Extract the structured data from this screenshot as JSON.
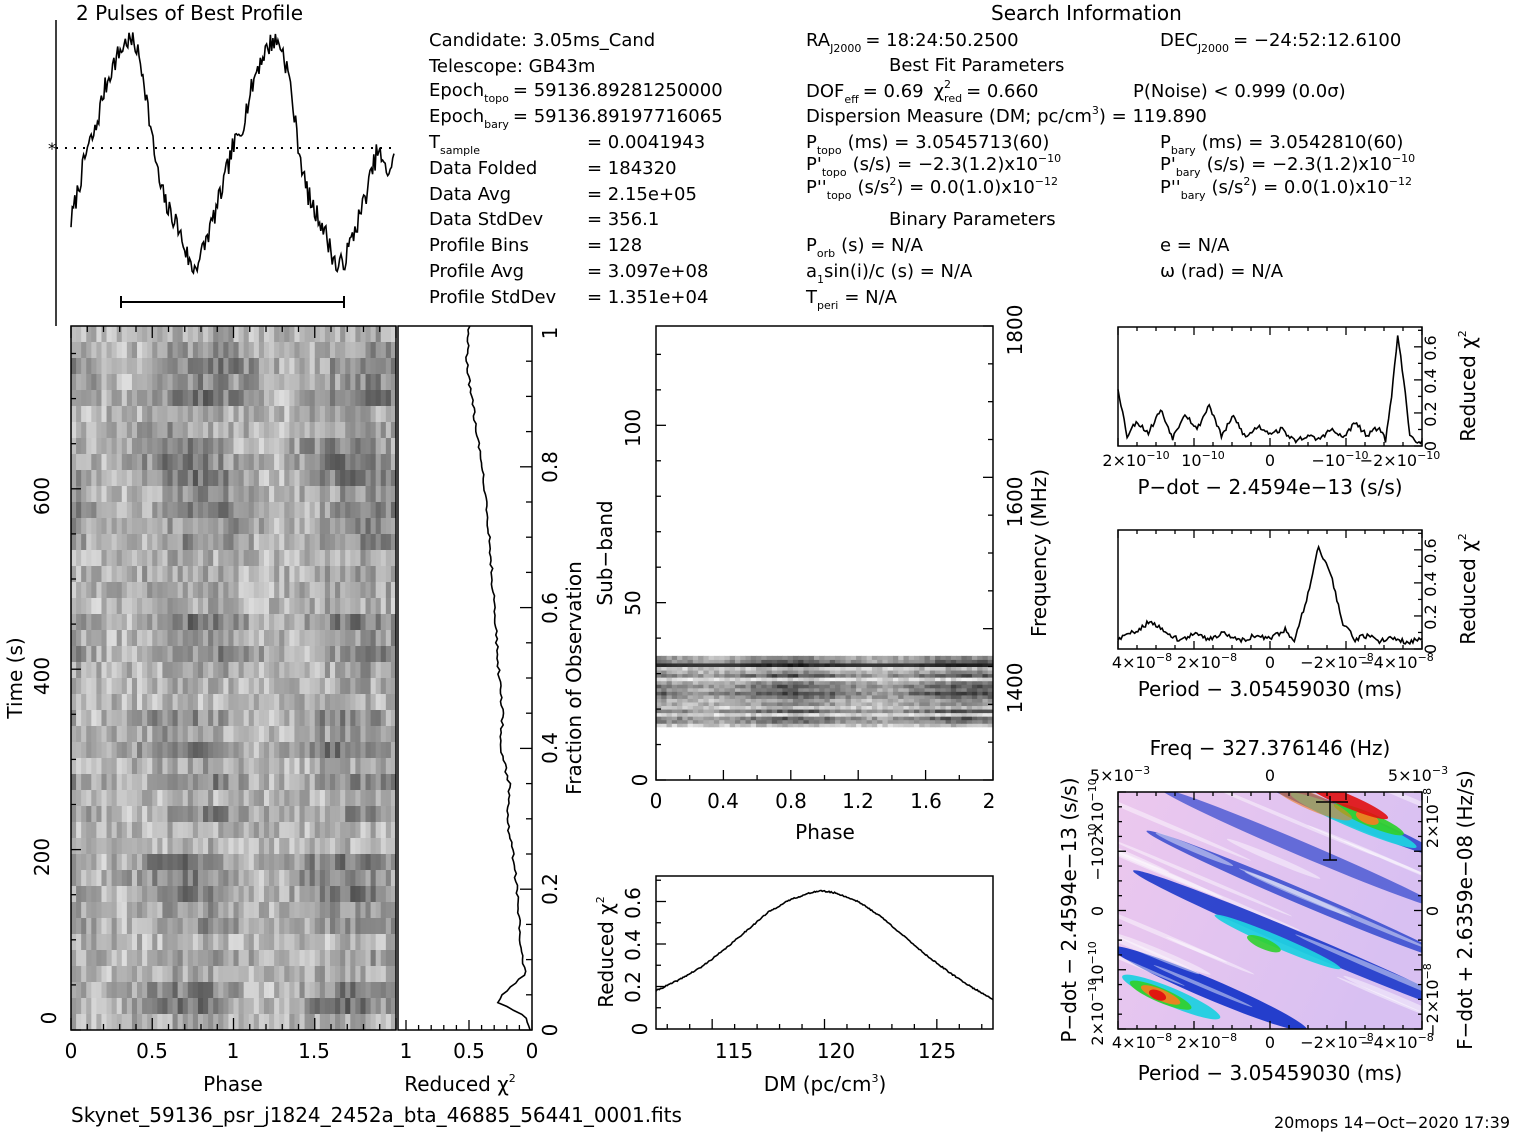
{
  "header": {
    "profile_title": "2 Pulses of Best Profile",
    "search_title": "Search Information",
    "best_fit_title": "Best Fit Parameters",
    "binary_title": "Binary Parameters"
  },
  "info_left": {
    "candidate": "Candidate:  3.05ms_Cand",
    "telescope": "Telescope:  GB43m",
    "epoch_topo_label": "Epoch",
    "epoch_topo_sub": "topo",
    "epoch_topo_value": "= 59136.89281250000",
    "epoch_bary_label": "Epoch",
    "epoch_bary_sub": "bary",
    "epoch_bary_value": "= 59136.89197716065",
    "t_sample_label": "T",
    "t_sample_sub": "sample",
    "t_sample_value": "=   0.0041943",
    "data_folded_label": "Data Folded",
    "data_folded_value": "=   184320",
    "data_avg_label": "Data Avg",
    "data_avg_value": "=   2.15e+05",
    "data_stddev_label": "Data StdDev",
    "data_stddev_value": "=   356.1",
    "profile_bins_label": "Profile Bins",
    "profile_bins_value": "=   128",
    "profile_avg_label": "Profile Avg",
    "profile_avg_value": "=   3.097e+08",
    "profile_stddev_label": "Profile StdDev",
    "profile_stddev_value": "=   1.351e+04"
  },
  "info_mid": {
    "ra_label": "RA",
    "ra_sub": "J2000",
    "ra_value": "= 18:24:50.2500",
    "dof_label": "DOF",
    "dof_sub": "eff",
    "dof_value": "= 0.69",
    "chi_label": "χ",
    "chi_sup": "2",
    "chi_sub": "red",
    "chi_value": "= 0.660",
    "pnoise": "P(Noise) < 0.999   (0.0σ)",
    "dm_line_a": "Dispersion Measure (DM; pc/cm",
    "dm_line_sup": "3",
    "dm_line_b": ") = 119.890",
    "ptopo_label": "P",
    "ptopo_sub": "topo",
    "ptopo_value": "(ms)  =   3.0545713(60)",
    "pdtopo_label": "P'",
    "pdtopo_sub": "topo",
    "pdtopo_value": "(s/s) = −2.3(1.2)x10",
    "pdtopo_exp": "−10",
    "pddtopo_label": "P''",
    "pddtopo_sub": "topo",
    "pddtopo_value_a": "(s/s",
    "pddtopo_sup": "2",
    "pddtopo_value_b": ") = 0.0(1.0)x10",
    "pddtopo_exp": "−12",
    "porb_label": "P",
    "porb_sub": "orb",
    "porb_value": "(s) = N/A",
    "a1_label_a": "a",
    "a1_sub": "1",
    "a1_label_b": "sin(i)/c (s) = N/A",
    "tperi_label": "T",
    "tperi_sub": "peri",
    "tperi_value": "= N/A"
  },
  "info_right": {
    "dec_label": "DEC",
    "dec_sub": "J2000",
    "dec_value": "= −24:52:12.6100",
    "pbary_label": "P",
    "pbary_sub": "bary",
    "pbary_value": "(ms)  =   3.0542810(60)",
    "pdbary_label": "P'",
    "pdbary_sub": "bary",
    "pdbary_value": "(s/s) = −2.3(1.2)x10",
    "pdbary_exp": "−10",
    "pddbary_label": "P''",
    "pddbary_sub": "bary",
    "pddbary_value_a": "(s/s",
    "pddbary_sup": "2",
    "pddbary_value_b": ") = 0.0(1.0)x10",
    "pddbary_exp": "−12",
    "ecc": "e = N/A",
    "omega": "ω (rad) = N/A"
  },
  "footer": {
    "filename": "Skynet_59136_psr_j1824_2452a_bta_46885_56441_0001.fits",
    "stamp": "20mops 14−Oct−2020 17:39"
  },
  "colors": {
    "ink": "#000000",
    "greyscale_dark": "#222222",
    "greyscale_light": "#ffffff",
    "pp_base": "#e8c8ef",
    "pp_blue": "#1030c8",
    "pp_cyan": "#20d0e0",
    "pp_green": "#30d030",
    "pp_orange": "#f08020",
    "pp_red": "#e01010"
  },
  "chart_data": [
    {
      "id": "profile",
      "type": "line",
      "title": "2 Pulses of Best Profile",
      "xlim": [
        0,
        2
      ],
      "x": [
        0.0,
        0.05,
        0.1,
        0.15,
        0.2,
        0.25,
        0.3,
        0.35,
        0.4,
        0.45,
        0.5,
        0.55,
        0.6,
        0.65,
        0.7,
        0.75,
        0.8,
        0.85,
        0.9,
        0.95,
        1.0,
        1.05,
        1.1,
        1.15,
        1.2,
        1.25,
        1.3,
        1.35,
        1.4,
        1.45,
        1.5,
        1.55,
        1.6,
        1.65,
        1.7,
        1.75,
        1.8,
        1.85,
        1.9,
        1.95,
        2.0
      ],
      "y": [
        0.25,
        0.4,
        0.55,
        0.62,
        0.78,
        0.88,
        0.95,
        1.0,
        0.98,
        0.85,
        0.6,
        0.4,
        0.3,
        0.25,
        0.15,
        0.05,
        0.1,
        0.2,
        0.3,
        0.42,
        0.55,
        0.62,
        0.75,
        0.88,
        0.95,
        1.0,
        0.98,
        0.85,
        0.6,
        0.4,
        0.3,
        0.25,
        0.15,
        0.05,
        0.1,
        0.2,
        0.3,
        0.42,
        0.55,
        0.45,
        0.5
      ],
      "mean_level": 0.58
    },
    {
      "id": "time-phase",
      "type": "heatmap",
      "xlabel": "Phase",
      "ylabel": "Time (s)",
      "xlim": [
        0,
        2
      ],
      "ylim": [
        0,
        773
      ],
      "x_ticks": [
        "0",
        "0.5",
        "1",
        "1.5"
      ],
      "y_ticks": [
        "0",
        "200",
        "400",
        "600"
      ]
    },
    {
      "id": "fraction-chi",
      "type": "line",
      "xlabel": "Reduced χ",
      "xlabel_sup": "2",
      "ylabel": "Fraction of Observation",
      "xlim": [
        1,
        0
      ],
      "ylim": [
        0,
        1
      ],
      "x_ticks": [
        "1",
        "0.5",
        "0"
      ],
      "y_ticks": [
        "0",
        "0.2",
        "0.4",
        "0.6",
        "0.8",
        "1"
      ],
      "fraction": [
        0.0,
        0.02,
        0.04,
        0.06,
        0.08,
        0.1,
        0.15,
        0.2,
        0.25,
        0.3,
        0.35,
        0.4,
        0.45,
        0.5,
        0.55,
        0.6,
        0.65,
        0.7,
        0.75,
        0.8,
        0.85,
        0.9,
        0.95,
        1.0
      ],
      "chi": [
        0.02,
        0.05,
        0.28,
        0.18,
        0.05,
        0.08,
        0.1,
        0.12,
        0.15,
        0.2,
        0.18,
        0.25,
        0.23,
        0.26,
        0.28,
        0.3,
        0.32,
        0.34,
        0.36,
        0.4,
        0.44,
        0.48,
        0.52,
        0.5
      ]
    },
    {
      "id": "subband-phase",
      "type": "heatmap",
      "xlabel": "Phase",
      "ylabel": "Sub−band",
      "ylabel_right": "Frequency (MHz)",
      "xlim": [
        0,
        2
      ],
      "ylim": [
        0,
        128
      ],
      "x_ticks": [
        "0",
        "0.4",
        "0.8",
        "1.2",
        "1.6",
        "2"
      ],
      "y_ticks": [
        "0",
        "50",
        "100"
      ],
      "y_ticks_right": [
        "1400",
        "1600",
        "1800"
      ],
      "active_band": [
        15,
        35
      ]
    },
    {
      "id": "dm-chi",
      "type": "line",
      "xlabel": "DM (pc/cm",
      "xlabel_sup": "3",
      "xlabel_tail": ")",
      "ylabel": "Reduced χ",
      "ylabel_sup": "2",
      "xlim": [
        112.5,
        127.5
      ],
      "ylim": [
        0,
        0.72
      ],
      "x_ticks": [
        "115",
        "120",
        "125"
      ],
      "y_ticks": [
        "0",
        "0.2",
        "0.4",
        "0.6"
      ],
      "x": [
        112.5,
        113.5,
        114.5,
        115.5,
        116.5,
        117.5,
        118.5,
        119.5,
        119.9,
        120.5,
        121.5,
        122.5,
        123.5,
        124.5,
        125.5,
        126.5,
        127.5
      ],
      "y": [
        0.18,
        0.23,
        0.29,
        0.37,
        0.46,
        0.55,
        0.61,
        0.645,
        0.65,
        0.64,
        0.6,
        0.53,
        0.44,
        0.35,
        0.27,
        0.2,
        0.14
      ]
    },
    {
      "id": "pdot-chi",
      "type": "line",
      "xlabel": "P−dot − 2.4594e−13 (s/s)",
      "ylabel": "Reduced χ",
      "ylabel_sup": "2",
      "ylim": [
        0,
        0.72
      ],
      "x_ticks": [
        "2×10",
        "10",
        "0",
        "−10",
        "−2×10"
      ],
      "x_tick_exps": [
        "−10",
        "−10",
        "",
        "−10",
        "−10"
      ],
      "y_ticks": [
        "0",
        "0.2",
        "0.4",
        "0.6"
      ],
      "x": [
        0,
        0.03,
        0.06,
        0.1,
        0.14,
        0.18,
        0.22,
        0.26,
        0.3,
        0.34,
        0.38,
        0.42,
        0.46,
        0.5,
        0.54,
        0.58,
        0.62,
        0.66,
        0.7,
        0.74,
        0.78,
        0.82,
        0.86,
        0.88,
        0.9,
        0.92,
        0.94,
        0.96,
        1.0
      ],
      "y": [
        0.35,
        0.06,
        0.15,
        0.08,
        0.22,
        0.05,
        0.2,
        0.1,
        0.25,
        0.06,
        0.18,
        0.05,
        0.12,
        0.08,
        0.1,
        0.03,
        0.06,
        0.04,
        0.1,
        0.05,
        0.14,
        0.06,
        0.12,
        0.03,
        0.3,
        0.68,
        0.4,
        0.05,
        0.02
      ]
    },
    {
      "id": "period-chi",
      "type": "line",
      "xlabel": "Period − 3.05459030 (ms)",
      "ylabel": "Reduced χ",
      "ylabel_sup": "2",
      "ylim": [
        0,
        0.72
      ],
      "x_ticks": [
        "4×10",
        "2×10",
        "0",
        "−2×10",
        "−4×10"
      ],
      "x_tick_exps": [
        "−8",
        "−8",
        "",
        "−8",
        "−8"
      ],
      "y_ticks": [
        "0",
        "0.2",
        "0.4",
        "0.6"
      ],
      "x": [
        0,
        0.05,
        0.1,
        0.15,
        0.2,
        0.25,
        0.3,
        0.35,
        0.4,
        0.45,
        0.5,
        0.55,
        0.58,
        0.62,
        0.66,
        0.7,
        0.74,
        0.78,
        0.82,
        0.86,
        0.9,
        0.95,
        1.0
      ],
      "y": [
        0.06,
        0.1,
        0.16,
        0.12,
        0.05,
        0.09,
        0.06,
        0.1,
        0.05,
        0.08,
        0.06,
        0.12,
        0.05,
        0.3,
        0.62,
        0.45,
        0.15,
        0.06,
        0.08,
        0.05,
        0.07,
        0.04,
        0.06
      ]
    },
    {
      "id": "ppdot",
      "type": "heatmap",
      "title": "Freq − 327.376146 (Hz)",
      "xlabel": "Period − 3.05459030 (ms)",
      "ylabel": "P−dot − 2.4594e−13 (s/s)",
      "ylabel_right": "F−dot + 2.6359e−08 (Hz/s)",
      "x_ticks": [
        "4×10",
        "2×10",
        "0",
        "−2×10",
        "−4×10"
      ],
      "x_tick_exps": [
        "−8",
        "−8",
        "",
        "−8",
        "−8"
      ],
      "top_ticks": [
        "5×10",
        "0",
        "5×10"
      ],
      "top_tick_exps": [
        "−3",
        "",
        "−3"
      ],
      "y_ticks": [
        "2×10",
        "10",
        "0",
        "−10",
        "2×10"
      ],
      "y_tick_exps": [
        "−10",
        "−10",
        "",
        "−10",
        "−10"
      ],
      "y_ticks_right": [
        "−2×10",
        "0",
        "2×10"
      ],
      "y_right_exps": [
        "−8",
        "",
        "−8"
      ]
    }
  ]
}
